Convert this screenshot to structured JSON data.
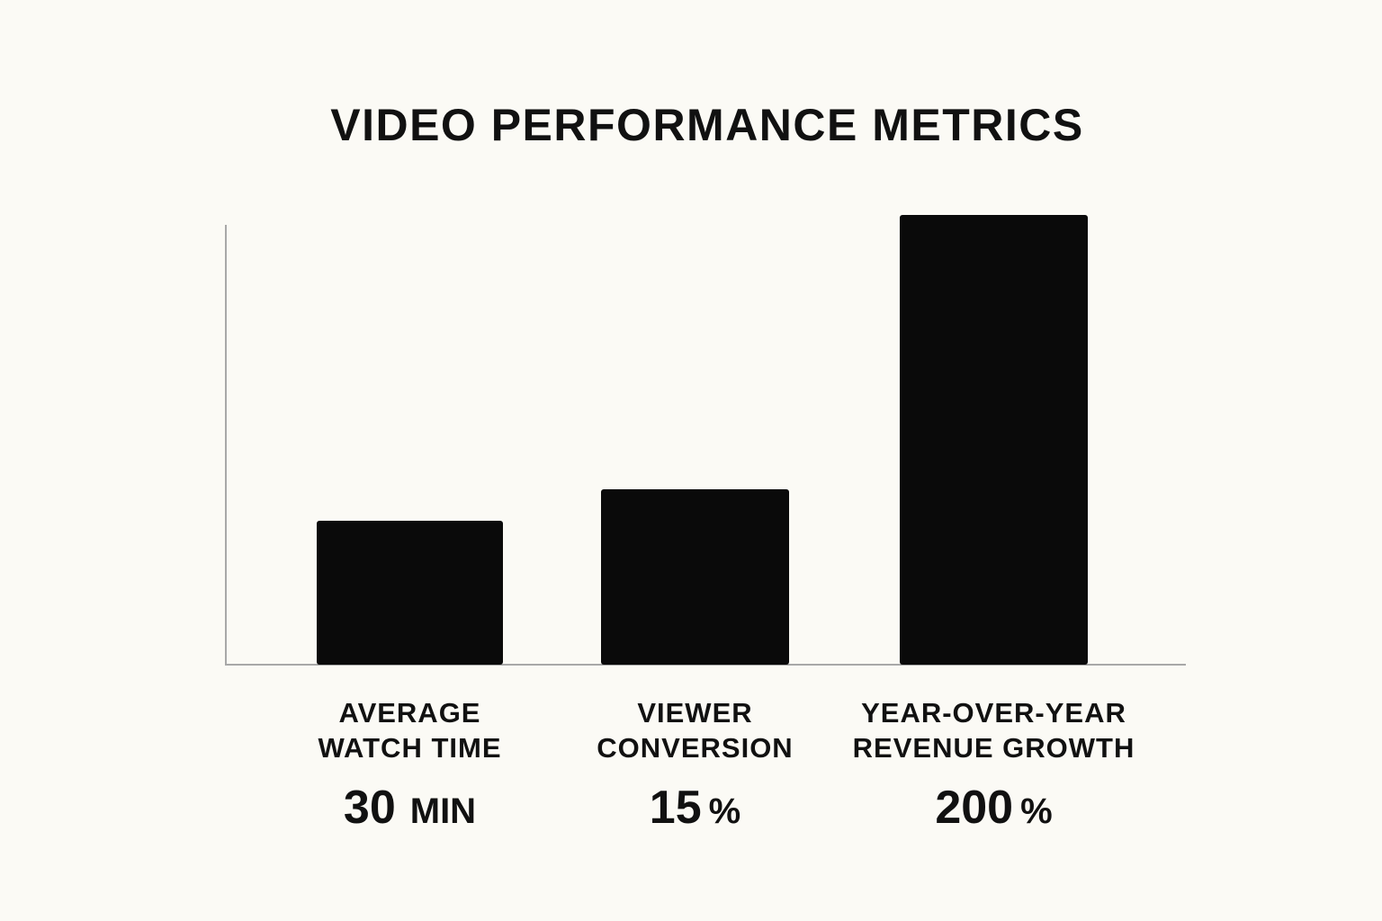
{
  "chart_data": {
    "type": "bar",
    "title": "VIDEO PERFORMANCE METRICS",
    "categories": [
      [
        "AVERAGE",
        "WATCH TIME"
      ],
      [
        "VIEWER",
        "CONVERSION"
      ],
      [
        "YEAR-OVER-YEAR",
        "REVENUE GROWTH"
      ]
    ],
    "values": [
      30,
      15,
      200
    ],
    "value_labels": [
      {
        "number": "30",
        "unit": "MIN"
      },
      {
        "number": "15",
        "unit": "%"
      },
      {
        "number": "200",
        "unit": "%"
      }
    ],
    "relative_bar_heights": [
      0.32,
      0.39,
      1.0
    ],
    "xlabel": "",
    "ylabel": "",
    "grid": false,
    "legend": "none",
    "bar_color": "#0a0a0a",
    "axis_color": "#a8a8a8"
  }
}
